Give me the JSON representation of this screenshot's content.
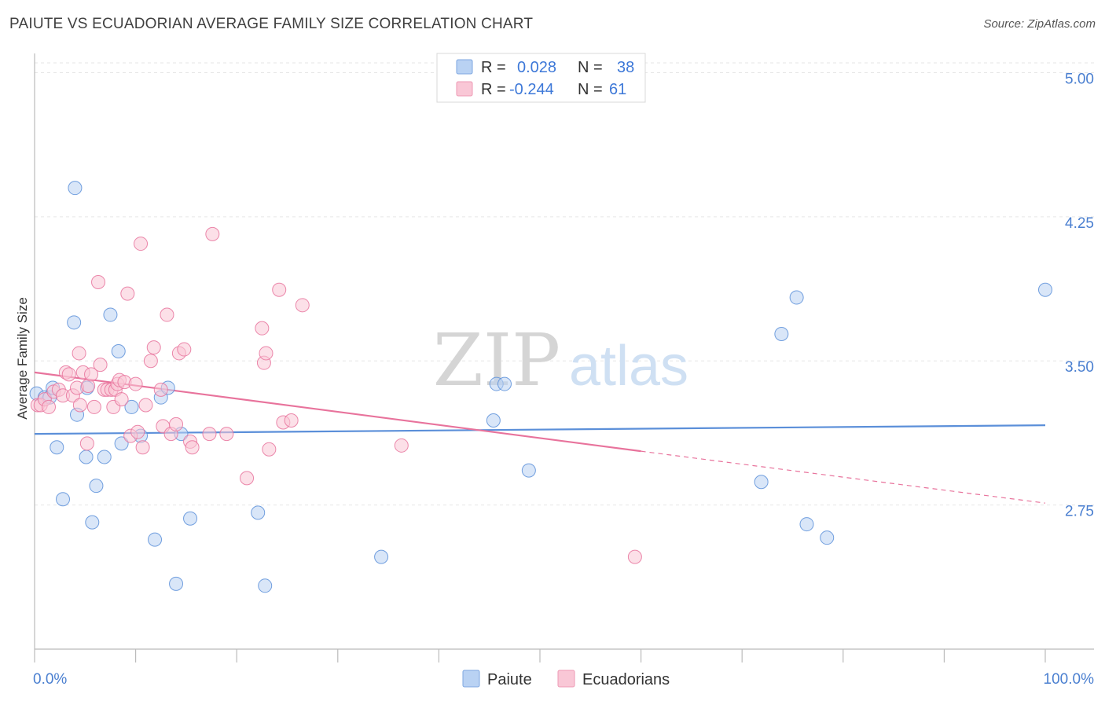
{
  "title": "PAIUTE VS ECUADORIAN AVERAGE FAMILY SIZE CORRELATION CHART",
  "source": "Source: ZipAtlas.com",
  "watermark": {
    "zip": "ZIP",
    "atlas": "atlas"
  },
  "legend_top": {
    "rows": [
      {
        "r_label": "R =",
        "r_value": "0.028",
        "n_label": "N =",
        "n_value": "38",
        "color": "#a9c8f0"
      },
      {
        "r_label": "R =",
        "r_value": "-0.244",
        "n_label": "N =",
        "n_value": "61",
        "color": "#f7b6c8"
      }
    ]
  },
  "chart_data": {
    "type": "scatter",
    "title": "PAIUTE VS ECUADORIAN AVERAGE FAMILY SIZE CORRELATION CHART",
    "xlabel": "",
    "ylabel": "Average Family Size",
    "xlim": [
      0,
      100
    ],
    "ylim": [
      2.0,
      5.1
    ],
    "x_tick_labels": [
      "0.0%",
      "100.0%"
    ],
    "y_ticks": [
      2.75,
      3.5,
      4.25,
      5.0
    ],
    "y_tick_labels": [
      "2.75",
      "3.50",
      "4.25",
      "5.00"
    ],
    "grid": true,
    "legend_position": "bottom",
    "series": [
      {
        "name": "Paiute",
        "color": "#5b8fd9",
        "fill": "#b9d2f3",
        "r": 0.028,
        "n": 38,
        "trend": {
          "x0": 0,
          "y0": 3.12,
          "x1": 100,
          "y1": 3.165
        },
        "points": [
          [
            0.2,
            3.33
          ],
          [
            1.0,
            3.31
          ],
          [
            1.5,
            3.31
          ],
          [
            1.8,
            3.36
          ],
          [
            2.2,
            3.05
          ],
          [
            2.8,
            2.78
          ],
          [
            3.9,
            3.7
          ],
          [
            4.0,
            4.4
          ],
          [
            4.2,
            3.22
          ],
          [
            5.1,
            3.0
          ],
          [
            5.2,
            3.36
          ],
          [
            5.7,
            2.66
          ],
          [
            6.1,
            2.85
          ],
          [
            6.9,
            3.0
          ],
          [
            7.5,
            3.74
          ],
          [
            8.3,
            3.55
          ],
          [
            8.6,
            3.07
          ],
          [
            9.6,
            3.26
          ],
          [
            10.5,
            3.11
          ],
          [
            11.9,
            2.57
          ],
          [
            12.5,
            3.31
          ],
          [
            13.2,
            3.36
          ],
          [
            14.0,
            2.34
          ],
          [
            14.5,
            3.12
          ],
          [
            15.4,
            2.68
          ],
          [
            22.1,
            2.71
          ],
          [
            22.8,
            2.33
          ],
          [
            34.3,
            2.48
          ],
          [
            45.4,
            3.19
          ],
          [
            45.7,
            3.38
          ],
          [
            46.5,
            3.38
          ],
          [
            48.9,
            2.93
          ],
          [
            71.9,
            2.87
          ],
          [
            73.9,
            3.64
          ],
          [
            75.4,
            3.83
          ],
          [
            76.4,
            2.65
          ],
          [
            78.4,
            2.58
          ],
          [
            100.0,
            3.87
          ]
        ]
      },
      {
        "name": "Ecuadorians",
        "color": "#e8739c",
        "fill": "#f9c7d6",
        "r": -0.244,
        "n": 61,
        "trend": {
          "x0": 0,
          "y0": 3.44,
          "x1": 60,
          "y1": 3.03
        },
        "trend_dashed": {
          "x0": 60,
          "y0": 3.03,
          "x1": 100,
          "y1": 2.76
        },
        "points": [
          [
            0.3,
            3.27
          ],
          [
            0.6,
            3.27
          ],
          [
            1.0,
            3.3
          ],
          [
            1.4,
            3.26
          ],
          [
            1.9,
            3.34
          ],
          [
            2.4,
            3.35
          ],
          [
            2.8,
            3.32
          ],
          [
            3.1,
            3.44
          ],
          [
            3.4,
            3.43
          ],
          [
            3.8,
            3.32
          ],
          [
            4.2,
            3.36
          ],
          [
            4.4,
            3.54
          ],
          [
            4.5,
            3.27
          ],
          [
            4.8,
            3.44
          ],
          [
            5.2,
            3.07
          ],
          [
            5.3,
            3.37
          ],
          [
            5.6,
            3.43
          ],
          [
            5.9,
            3.26
          ],
          [
            6.3,
            3.91
          ],
          [
            6.5,
            3.48
          ],
          [
            6.9,
            3.35
          ],
          [
            7.2,
            3.35
          ],
          [
            7.6,
            3.35
          ],
          [
            7.8,
            3.26
          ],
          [
            8.0,
            3.35
          ],
          [
            8.2,
            3.38
          ],
          [
            8.4,
            3.4
          ],
          [
            8.6,
            3.3
          ],
          [
            8.9,
            3.39
          ],
          [
            9.2,
            3.85
          ],
          [
            9.5,
            3.11
          ],
          [
            10.0,
            3.38
          ],
          [
            10.2,
            3.13
          ],
          [
            10.5,
            4.11
          ],
          [
            10.7,
            3.05
          ],
          [
            11.0,
            3.27
          ],
          [
            11.5,
            3.5
          ],
          [
            11.8,
            3.57
          ],
          [
            12.5,
            3.35
          ],
          [
            12.7,
            3.16
          ],
          [
            13.1,
            3.74
          ],
          [
            13.5,
            3.12
          ],
          [
            14.0,
            3.17
          ],
          [
            14.3,
            3.54
          ],
          [
            14.8,
            3.56
          ],
          [
            15.4,
            3.08
          ],
          [
            15.6,
            3.05
          ],
          [
            17.3,
            3.12
          ],
          [
            17.6,
            4.16
          ],
          [
            19.0,
            3.12
          ],
          [
            21.0,
            2.89
          ],
          [
            22.5,
            3.67
          ],
          [
            22.7,
            3.49
          ],
          [
            22.9,
            3.54
          ],
          [
            23.2,
            3.04
          ],
          [
            24.2,
            3.87
          ],
          [
            24.6,
            3.18
          ],
          [
            25.4,
            3.19
          ],
          [
            26.5,
            3.79
          ],
          [
            36.3,
            3.06
          ],
          [
            59.4,
            2.48
          ]
        ]
      }
    ]
  },
  "bottom_legend": [
    {
      "label": "Paiute",
      "color": "#a9c8f0"
    },
    {
      "label": "Ecuadorians",
      "color": "#f7b6c8"
    }
  ]
}
